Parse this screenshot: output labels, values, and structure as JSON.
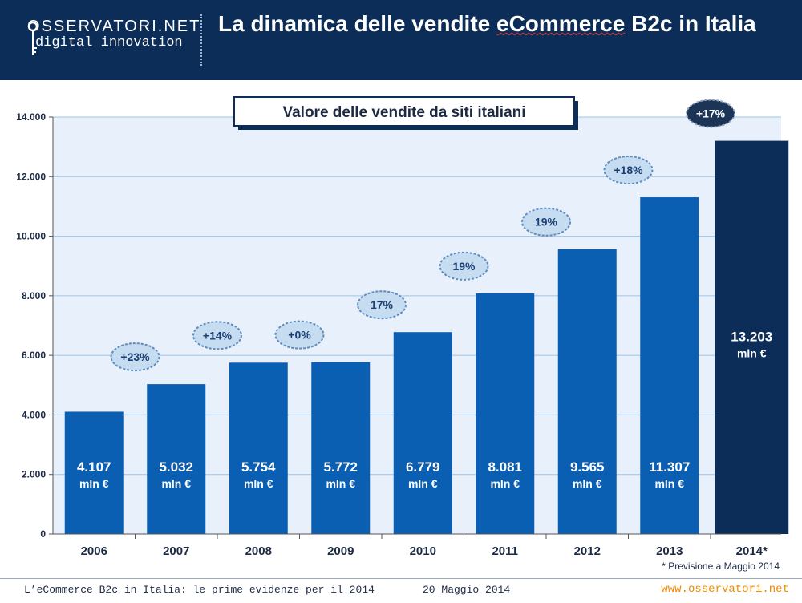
{
  "header": {
    "logo_top": "OSSERVATORI.NET",
    "logo_bottom": "digital innovation",
    "title_part1": "La dinamica delle vendite ",
    "title_underlined": "eCommerce",
    "title_part2": " B2c in Italia"
  },
  "chart_data": {
    "type": "bar",
    "title": "Valore delle vendite da siti italiani",
    "categories": [
      "2006",
      "2007",
      "2008",
      "2009",
      "2010",
      "2011",
      "2012",
      "2013",
      "2014*"
    ],
    "values": [
      4107,
      5032,
      5754,
      5772,
      6779,
      8081,
      9565,
      11307,
      13203
    ],
    "value_labels": [
      "4.107",
      "5.032",
      "5.754",
      "5.772",
      "6.779",
      "8.081",
      "9.565",
      "11.307",
      "13.203"
    ],
    "unit_label": "mln €",
    "growth_labels": [
      "+23%",
      "+14%",
      "+0%",
      "17%",
      "19%",
      "19%",
      "+18%",
      "+17%"
    ],
    "ylim": [
      0,
      14000
    ],
    "yticks": [
      "0",
      "2.000",
      "4.000",
      "6.000",
      "8.000",
      "10.000",
      "12.000",
      "14.000"
    ],
    "xlabel": "",
    "ylabel": "",
    "grid": true,
    "note": "* Previsione a Maggio 2014",
    "colors": {
      "bar": "#0b5fb3",
      "bar_forecast": "#0c2d57",
      "plot_background": "#e8f1fb",
      "grid": "#9ec3e6",
      "badge": "#c5dcf1",
      "badge_border": "#5f8bbd",
      "badge_forecast": "#1c3557"
    }
  },
  "footer": {
    "left": "L’eCommerce B2c in Italia: le prime evidenze per il 2014",
    "date": "20 Maggio 2014",
    "url": "www.osservatori.net"
  }
}
